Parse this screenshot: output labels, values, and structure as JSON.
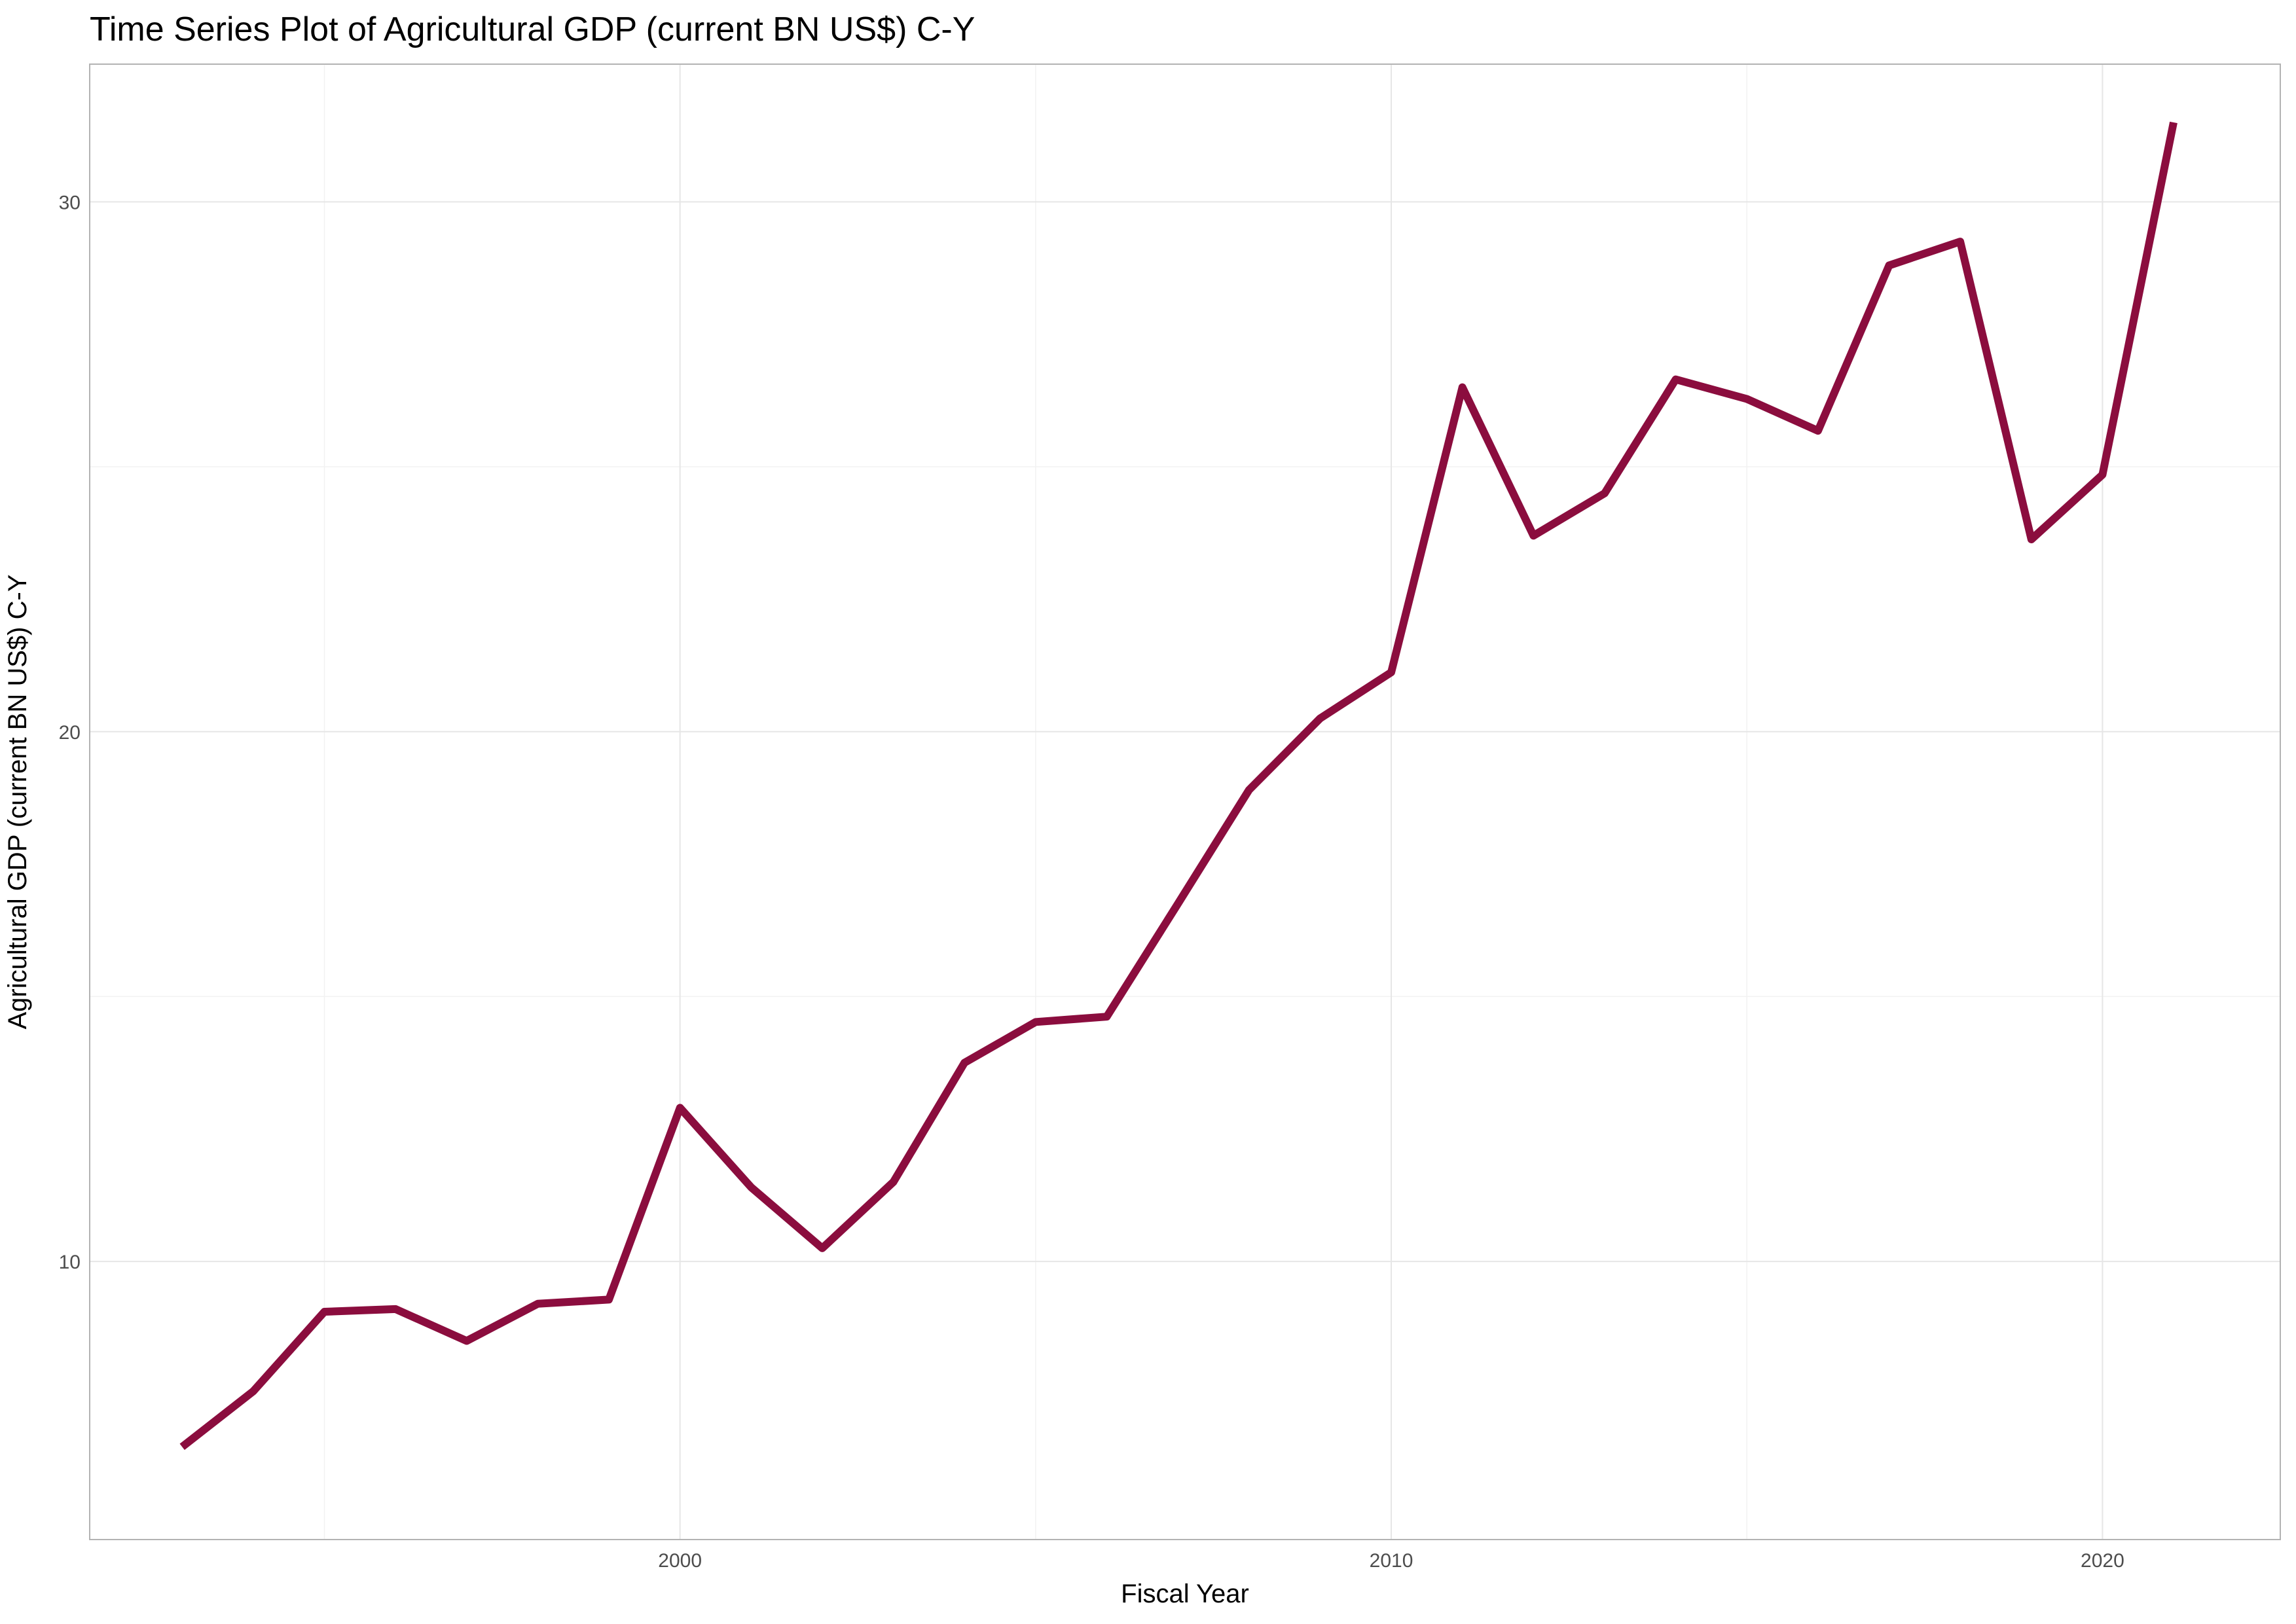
{
  "chart_data": {
    "type": "line",
    "title": "Time Series Plot of Agricultural GDP (current BN US$) C-Y",
    "xlabel": "Fiscal Year",
    "ylabel": "Agricultural GDP (current BN US$) C-Y",
    "xlim": [
      1991.7,
      2022.5
    ],
    "ylim": [
      4.75,
      32.6
    ],
    "x_ticks": [
      2000,
      2010,
      2020
    ],
    "x_minor_ticks": [
      1995,
      2005,
      2015
    ],
    "y_ticks": [
      10,
      20,
      30
    ],
    "y_minor_ticks": [
      15,
      25
    ],
    "grid": true,
    "legend": "none",
    "line_color": "#8B0D3E",
    "series": [
      {
        "x": [
          1993,
          1994,
          1995,
          1996,
          1997,
          1998,
          1999,
          2000,
          2001,
          2002,
          2003,
          2004,
          2005,
          2006,
          2007,
          2008,
          2009,
          2010,
          2011,
          2012,
          2013,
          2014,
          2015,
          2016,
          2017,
          2018,
          2019,
          2020,
          2021
        ],
        "values": [
          6.5,
          7.55,
          9.05,
          9.1,
          8.5,
          9.2,
          9.28,
          12.9,
          11.4,
          10.25,
          11.5,
          13.75,
          14.52,
          14.62,
          16.75,
          18.9,
          20.25,
          21.12,
          26.5,
          23.7,
          24.5,
          26.65,
          26.28,
          25.68,
          28.8,
          29.25,
          23.63,
          24.85,
          31.5
        ]
      }
    ]
  }
}
